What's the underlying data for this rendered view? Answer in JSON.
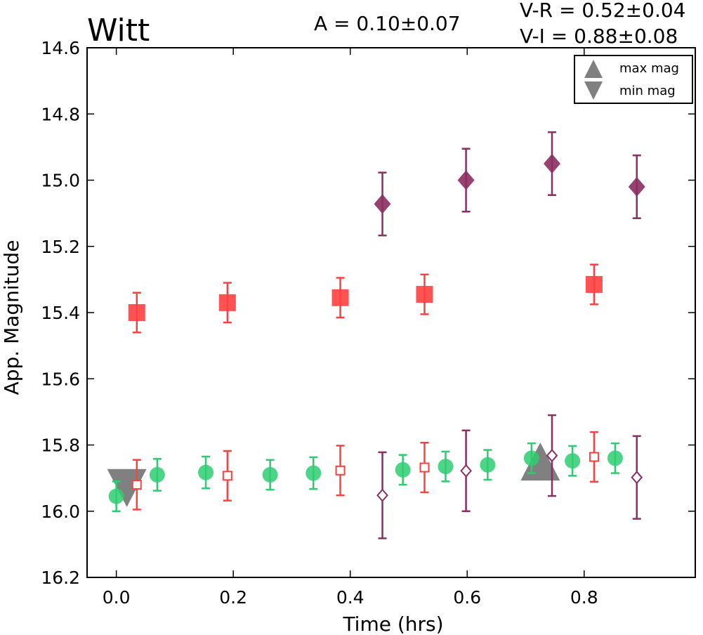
{
  "chart_data": {
    "type": "scatter",
    "title": "Witt",
    "annotations": {
      "amplitude": "A  = 0.10±0.07",
      "v_r": "V-R = 0.52±0.04",
      "v_i": "V-I  = 0.88±0.08"
    },
    "xlabel": "Time (hrs)",
    "ylabel": "App. Magnitude",
    "xlim": [
      -0.05,
      0.99
    ],
    "ylim": [
      16.2,
      14.6
    ],
    "y_inverted": true,
    "xticks": [
      "0.0",
      "0.2",
      "0.4",
      "0.6",
      "0.8"
    ],
    "xtick_values": [
      0.0,
      0.2,
      0.4,
      0.6,
      0.8
    ],
    "yticks": [
      "14.6",
      "14.8",
      "15.0",
      "15.2",
      "15.4",
      "15.6",
      "15.8",
      "16.0",
      "16.2"
    ],
    "ytick_values": [
      14.6,
      14.8,
      15.0,
      15.2,
      15.4,
      15.6,
      15.8,
      16.0,
      16.2
    ],
    "grid": false,
    "legend": {
      "placement": "top-right",
      "entries": [
        {
          "label": "max mag",
          "marker": "triangle-up",
          "color": "#808080"
        },
        {
          "label": "min mag",
          "marker": "triangle-down",
          "color": "#808080"
        }
      ]
    },
    "series": [
      {
        "marker": "circle",
        "filled": true,
        "color": "#2ecc71",
        "points": [
          {
            "x": 0.0,
            "y": 15.955,
            "err": 0.045
          },
          {
            "x": 0.07,
            "y": 15.89,
            "err": 0.048
          },
          {
            "x": 0.153,
            "y": 15.883,
            "err": 0.048
          },
          {
            "x": 0.263,
            "y": 15.89,
            "err": 0.045
          },
          {
            "x": 0.337,
            "y": 15.885,
            "err": 0.048
          },
          {
            "x": 0.49,
            "y": 15.875,
            "err": 0.045
          },
          {
            "x": 0.563,
            "y": 15.865,
            "err": 0.045
          },
          {
            "x": 0.635,
            "y": 15.86,
            "err": 0.045
          },
          {
            "x": 0.71,
            "y": 15.84,
            "err": 0.045
          },
          {
            "x": 0.78,
            "y": 15.848,
            "err": 0.045
          },
          {
            "x": 0.853,
            "y": 15.84,
            "err": 0.045
          }
        ]
      },
      {
        "marker": "square",
        "filled": true,
        "color": "#ff4040",
        "points": [
          {
            "x": 0.035,
            "y": 15.4,
            "err": 0.06
          },
          {
            "x": 0.19,
            "y": 15.37,
            "err": 0.06
          },
          {
            "x": 0.383,
            "y": 15.355,
            "err": 0.06
          },
          {
            "x": 0.527,
            "y": 15.345,
            "err": 0.06
          },
          {
            "x": 0.817,
            "y": 15.315,
            "err": 0.06
          }
        ]
      },
      {
        "marker": "square",
        "filled": false,
        "color": "#ff4040",
        "points": [
          {
            "x": 0.035,
            "y": 15.92,
            "err": 0.075
          },
          {
            "x": 0.19,
            "y": 15.893,
            "err": 0.075
          },
          {
            "x": 0.383,
            "y": 15.877,
            "err": 0.075
          },
          {
            "x": 0.527,
            "y": 15.868,
            "err": 0.075
          },
          {
            "x": 0.817,
            "y": 15.836,
            "err": 0.075
          }
        ]
      },
      {
        "marker": "diamond",
        "filled": true,
        "color": "#8b2e62",
        "points": [
          {
            "x": 0.455,
            "y": 15.072,
            "err": 0.095
          },
          {
            "x": 0.598,
            "y": 15.0,
            "err": 0.095
          },
          {
            "x": 0.745,
            "y": 14.95,
            "err": 0.095
          },
          {
            "x": 0.89,
            "y": 15.02,
            "err": 0.095
          }
        ]
      },
      {
        "marker": "diamond",
        "filled": false,
        "color": "#8b2e62",
        "points": [
          {
            "x": 0.455,
            "y": 15.952,
            "err": 0.13
          },
          {
            "x": 0.598,
            "y": 15.878,
            "err": 0.122
          },
          {
            "x": 0.745,
            "y": 15.832,
            "err": 0.122
          },
          {
            "x": 0.89,
            "y": 15.898,
            "err": 0.125
          }
        ]
      }
    ],
    "extrema": [
      {
        "label": "min mag",
        "marker": "triangle-down",
        "x": 0.018,
        "y": 15.93,
        "color": "#808080"
      },
      {
        "label": "max mag",
        "marker": "triangle-up",
        "x": 0.725,
        "y": 15.85,
        "color": "#808080"
      }
    ]
  }
}
